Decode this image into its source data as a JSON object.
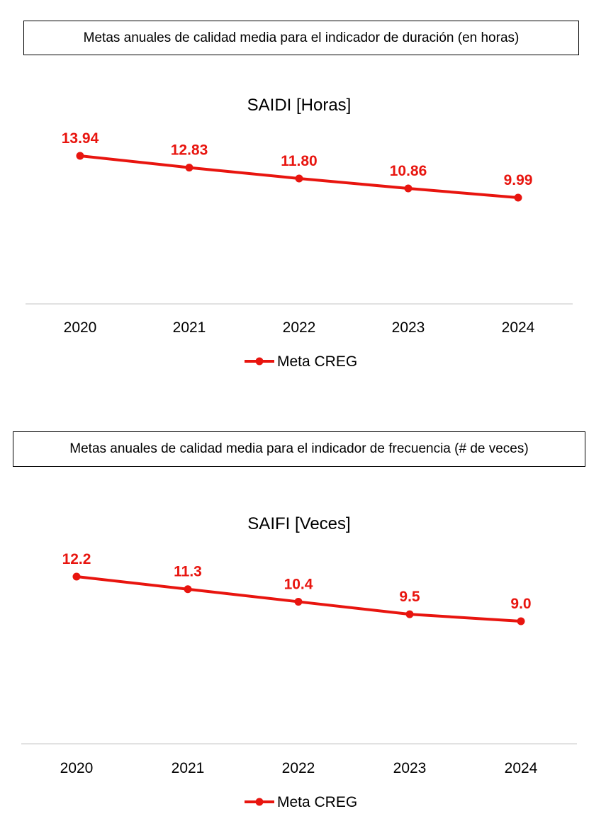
{
  "panels": [
    {
      "caption": "Metas anuales de calidad media para el indicador de duración (en horas)"
    },
    {
      "caption": "Metas anuales de calidad media para el indicador de frecuencia (# de veces)"
    }
  ],
  "colors": {
    "series": "#e8150f",
    "axis": "#d9d9d9",
    "text": "#000000"
  },
  "chart_data": [
    {
      "type": "line",
      "title": "SAIDI [Horas]",
      "categories": [
        "2020",
        "2021",
        "2022",
        "2023",
        "2024"
      ],
      "series": [
        {
          "name": "Meta CREG",
          "values": [
            13.94,
            12.83,
            11.8,
            10.86,
            9.99
          ],
          "labels": [
            "13.94",
            "12.83",
            "11.80",
            "10.86",
            "9.99"
          ]
        }
      ],
      "legend": "bottom",
      "grid": false
    },
    {
      "type": "line",
      "title": "SAIFI [Veces]",
      "categories": [
        "2020",
        "2021",
        "2022",
        "2023",
        "2024"
      ],
      "series": [
        {
          "name": "Meta CREG",
          "values": [
            12.2,
            11.3,
            10.4,
            9.5,
            9.0
          ],
          "labels": [
            "12.2",
            "11.3",
            "10.4",
            "9.5",
            "9.0"
          ]
        }
      ],
      "legend": "bottom",
      "grid": false
    }
  ]
}
